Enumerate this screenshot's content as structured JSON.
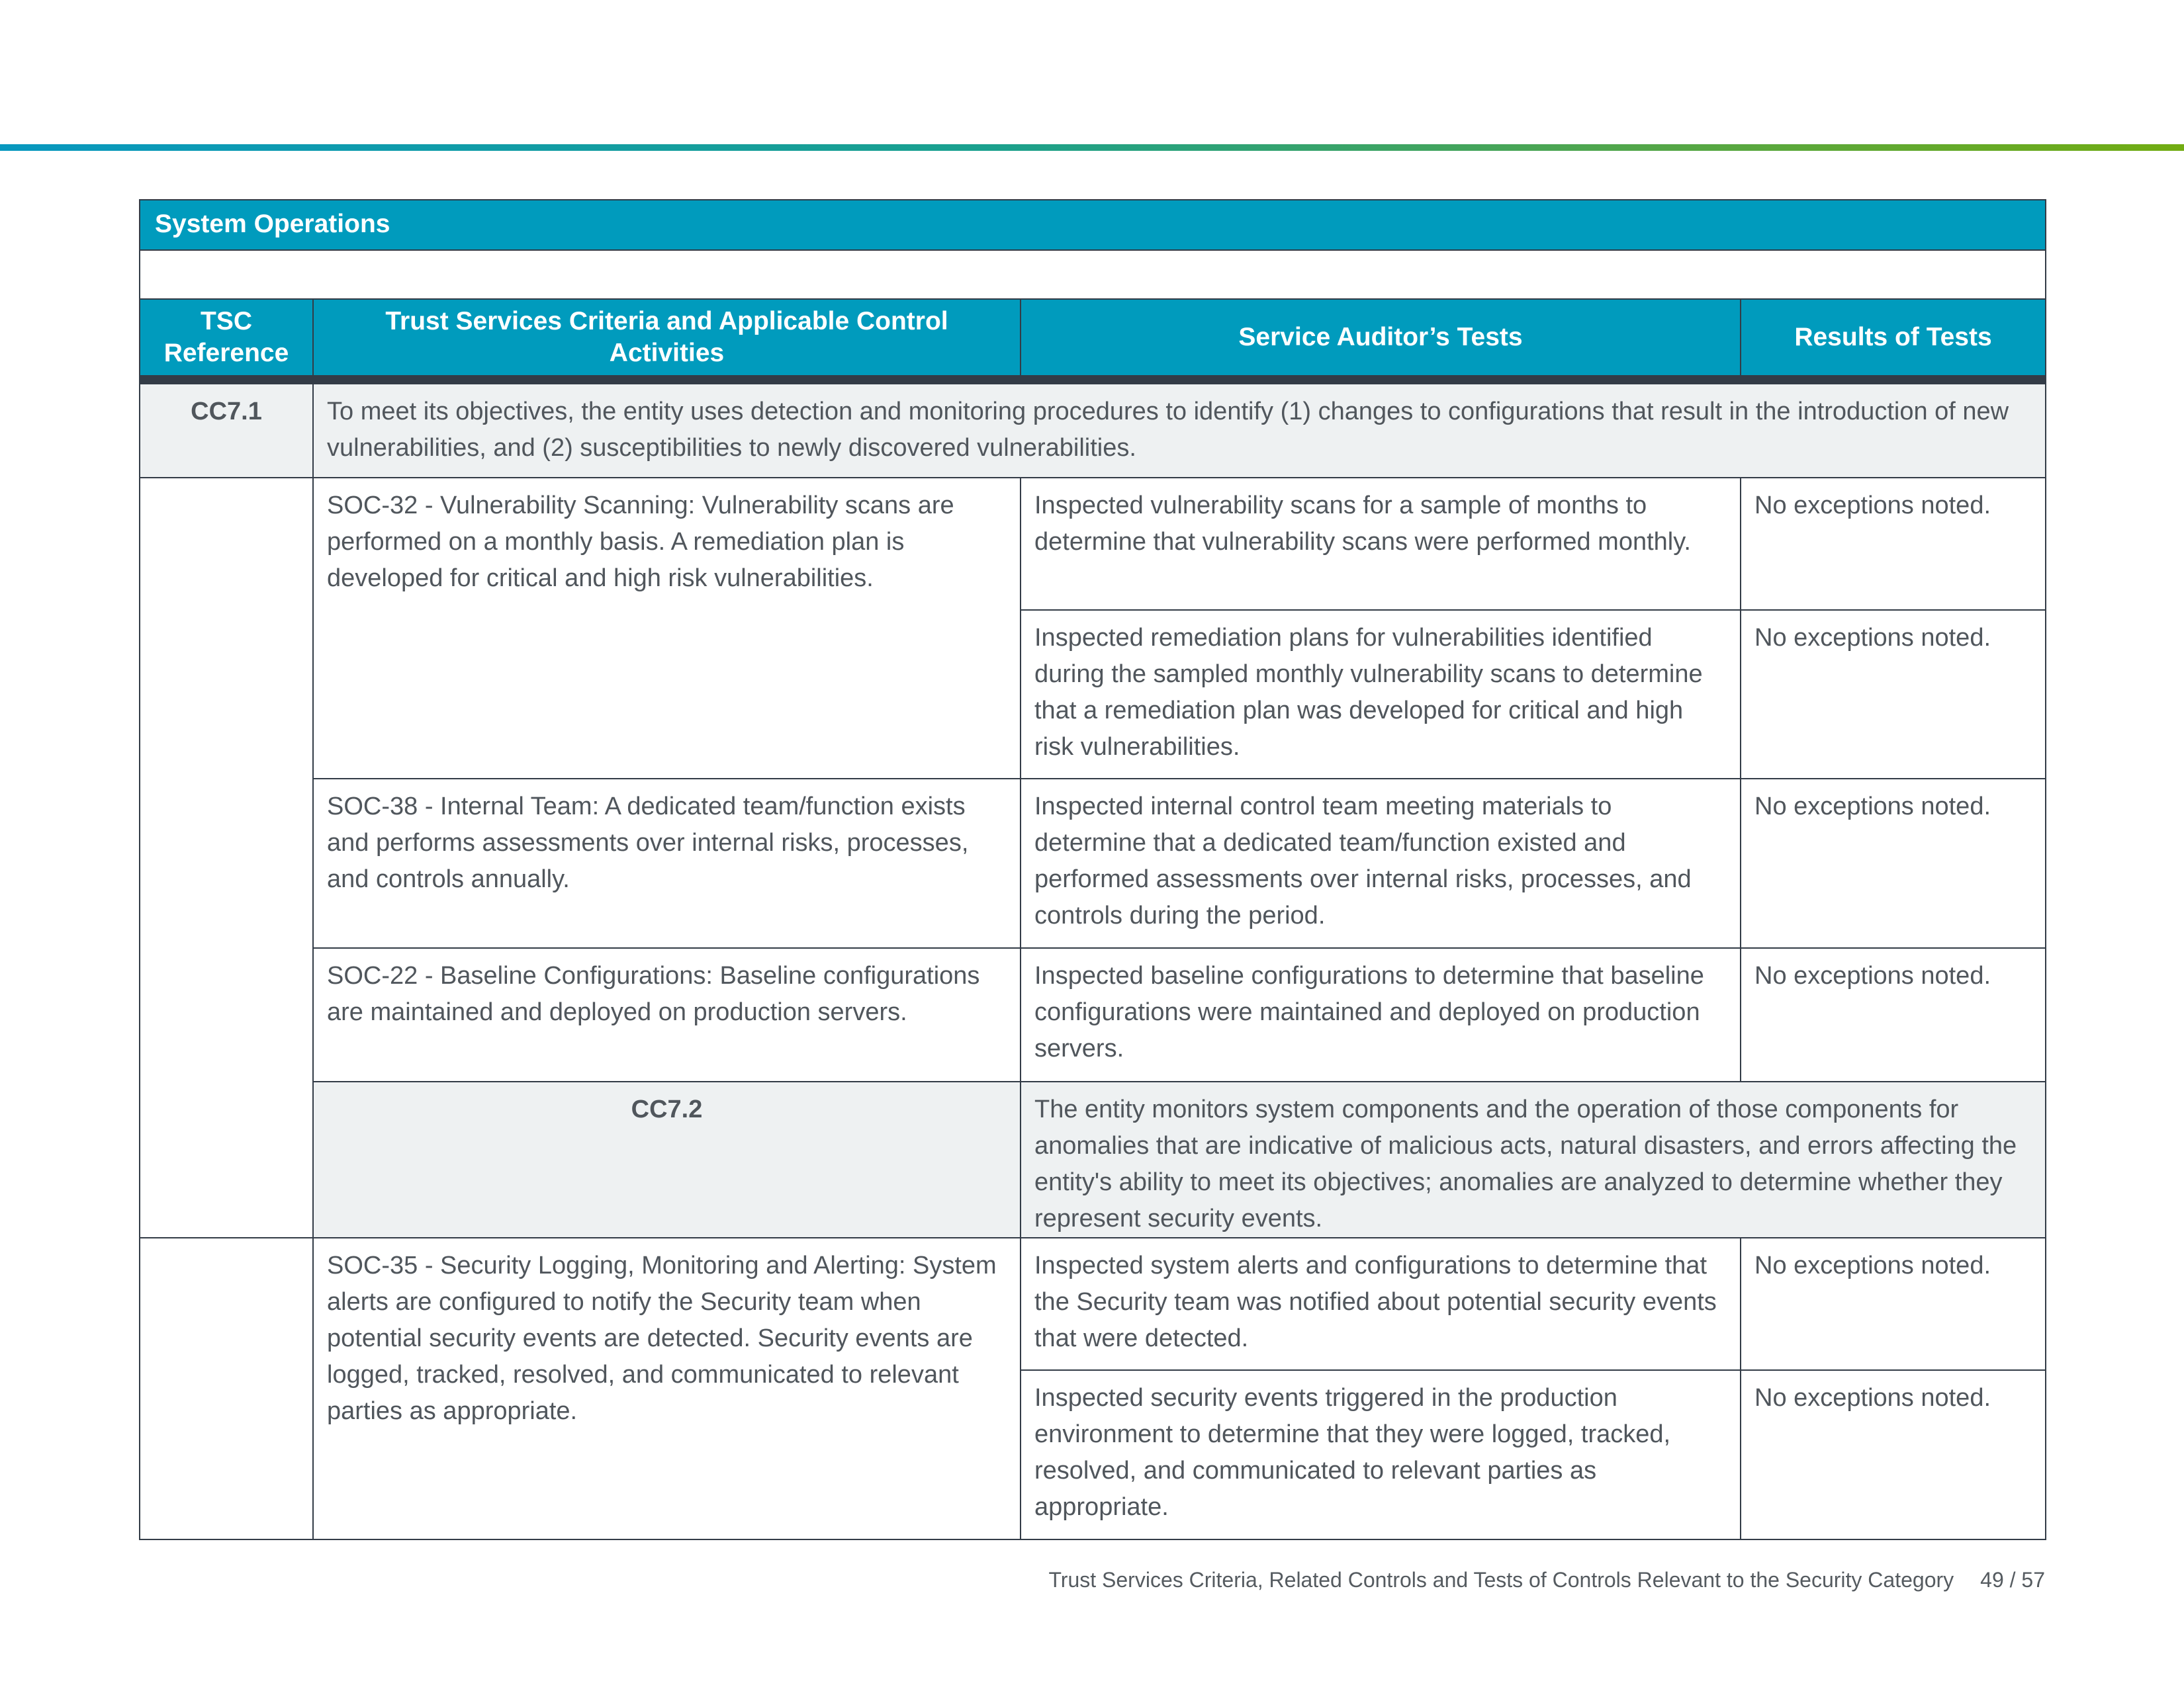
{
  "section_title": "System Operations",
  "columns": [
    "TSC Reference",
    "Trust Services Criteria and Applicable Control Activities",
    "Service Auditor’s Tests",
    "Results of Tests"
  ],
  "criteria": [
    {
      "ref": "CC7.1",
      "text": "To meet its objectives, the entity uses detection and monitoring procedures to identify (1) changes to configurations that result in the introduction of new vulnerabilities, and (2) susceptibilities to newly discovered vulnerabilities.",
      "controls": [
        {
          "control": "SOC-32 - Vulnerability Scanning: Vulnerability scans are performed on a monthly basis. A remediation plan is developed for critical and high risk vulnerabilities.",
          "tests": [
            {
              "test": "Inspected vulnerability scans for a sample of months to determine that vulnerability scans were performed monthly.",
              "result": "No exceptions noted."
            },
            {
              "test": "Inspected remediation plans for vulnerabilities identified during the sampled monthly vulnerability scans to determine that a remediation plan was developed for critical and high risk vulnerabilities.",
              "result": "No exceptions noted."
            }
          ]
        },
        {
          "control": "SOC-38 - Internal Team: A dedicated team/function exists and performs assessments over internal risks, processes, and controls annually.",
          "tests": [
            {
              "test": "Inspected internal control team meeting materials to determine that a dedicated team/function existed and performed assessments over internal risks, processes, and controls during the period.",
              "result": "No exceptions noted."
            }
          ]
        },
        {
          "control": "SOC-22 - Baseline Configurations: Baseline configurations are maintained and deployed on production servers.",
          "tests": [
            {
              "test": "Inspected baseline configurations to determine that baseline configurations were maintained and deployed on production servers.",
              "result": "No exceptions noted."
            }
          ]
        }
      ]
    },
    {
      "ref": "CC7.2",
      "text": "The entity monitors system components and the operation of those components for anomalies that are indicative of malicious acts, natural disasters, and errors affecting the entity's ability to meet its objectives; anomalies are analyzed to determine whether they represent security events.",
      "controls": [
        {
          "control": "SOC-35 - Security Logging, Monitoring and Alerting: System alerts are configured to notify the Security team when potential security events are detected. Security events are logged, tracked, resolved, and communicated to relevant parties as appropriate.",
          "tests": [
            {
              "test": "Inspected system alerts and configurations to determine that the Security team was notified about potential security events that were detected.",
              "result": "No exceptions noted."
            },
            {
              "test": "Inspected security events triggered in the production environment to determine that they were logged, tracked, resolved, and communicated to relevant parties as appropriate.",
              "result": "No exceptions noted."
            }
          ]
        }
      ]
    }
  ],
  "footer": {
    "text": "Trust Services Criteria, Related Controls and Tests of Controls Relevant to the Security Category",
    "page": "49 / 57"
  }
}
